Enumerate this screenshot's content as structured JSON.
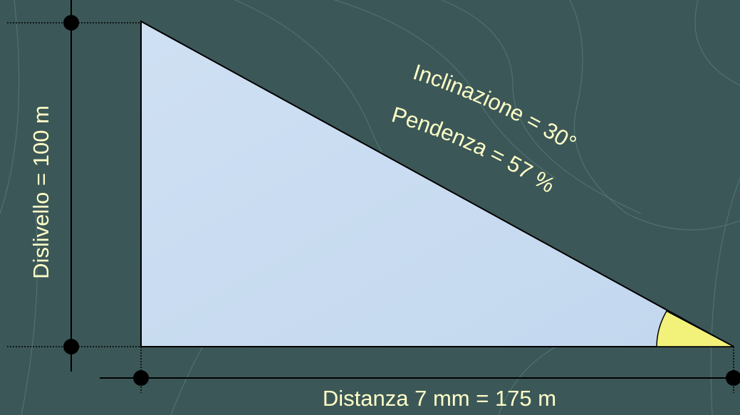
{
  "labels": {
    "vertical": "Dislivello = 100 m",
    "inclination": "Inclinazione = 30°",
    "slope": "Pendenza = 57 %",
    "horizontal": "Distanza 7 mm = 175 m"
  }
}
